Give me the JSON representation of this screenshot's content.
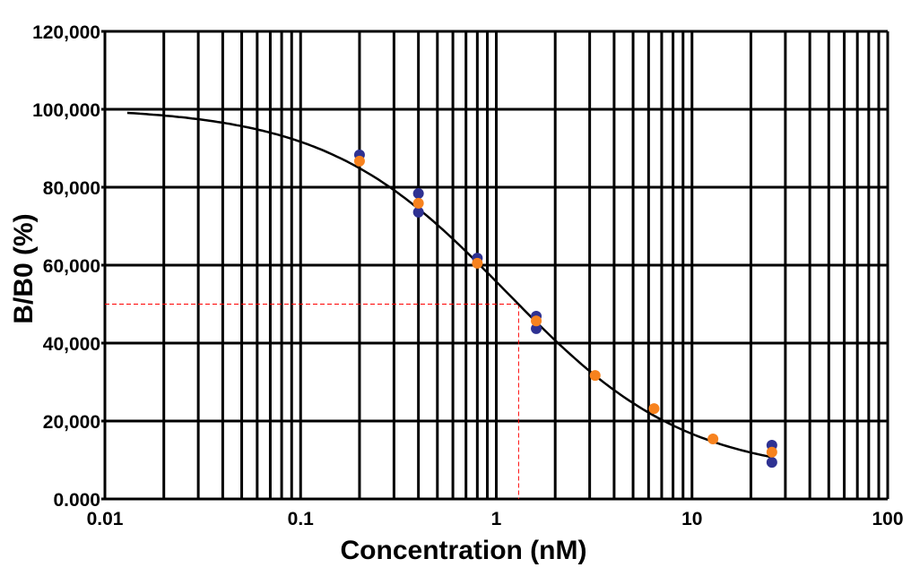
{
  "chart_data": {
    "type": "scatter",
    "title": "",
    "xlabel": "Concentration (nM)",
    "ylabel": "B/B0 (%)",
    "x_scale": "log",
    "xlim": [
      0.01,
      100
    ],
    "ylim": [
      0,
      120000
    ],
    "grid": true,
    "x_ticks": [
      0.01,
      0.1,
      1,
      10,
      100
    ],
    "x_tick_labels": [
      "0.01",
      "0.1",
      "1",
      "10",
      "100"
    ],
    "y_ticks": [
      0,
      20000,
      40000,
      60000,
      80000,
      100000,
      120000
    ],
    "y_tick_labels": [
      "0.000",
      "20,000",
      "40,000",
      "60,000",
      "80,000",
      "100,000",
      "120,000"
    ],
    "series": [
      {
        "color": "#2e3192",
        "points": [
          [
            0.2,
            88300
          ],
          [
            0.4,
            78400
          ],
          [
            0.4,
            73600
          ],
          [
            0.8,
            61800
          ],
          [
            1.6,
            46900
          ],
          [
            1.6,
            43700
          ],
          [
            25.6,
            13800
          ],
          [
            25.6,
            9400
          ]
        ]
      },
      {
        "color": "#f7821e",
        "points": [
          [
            0.2,
            86700
          ],
          [
            0.4,
            75900
          ],
          [
            0.8,
            60500
          ],
          [
            1.6,
            45700
          ],
          [
            3.2,
            31700
          ],
          [
            6.4,
            23200
          ],
          [
            12.8,
            15400
          ],
          [
            25.6,
            12000
          ]
        ]
      }
    ],
    "fit_curve": {
      "model": "4PL",
      "top": 100500,
      "bottom": 6000,
      "ic50": 1.12,
      "hill": 0.94,
      "x_range": [
        0.013,
        25.6
      ],
      "color": "#000000"
    },
    "ic50_marker": {
      "x": 1.3,
      "y": 50000,
      "color": "#ff0000",
      "style": "dashed"
    }
  }
}
